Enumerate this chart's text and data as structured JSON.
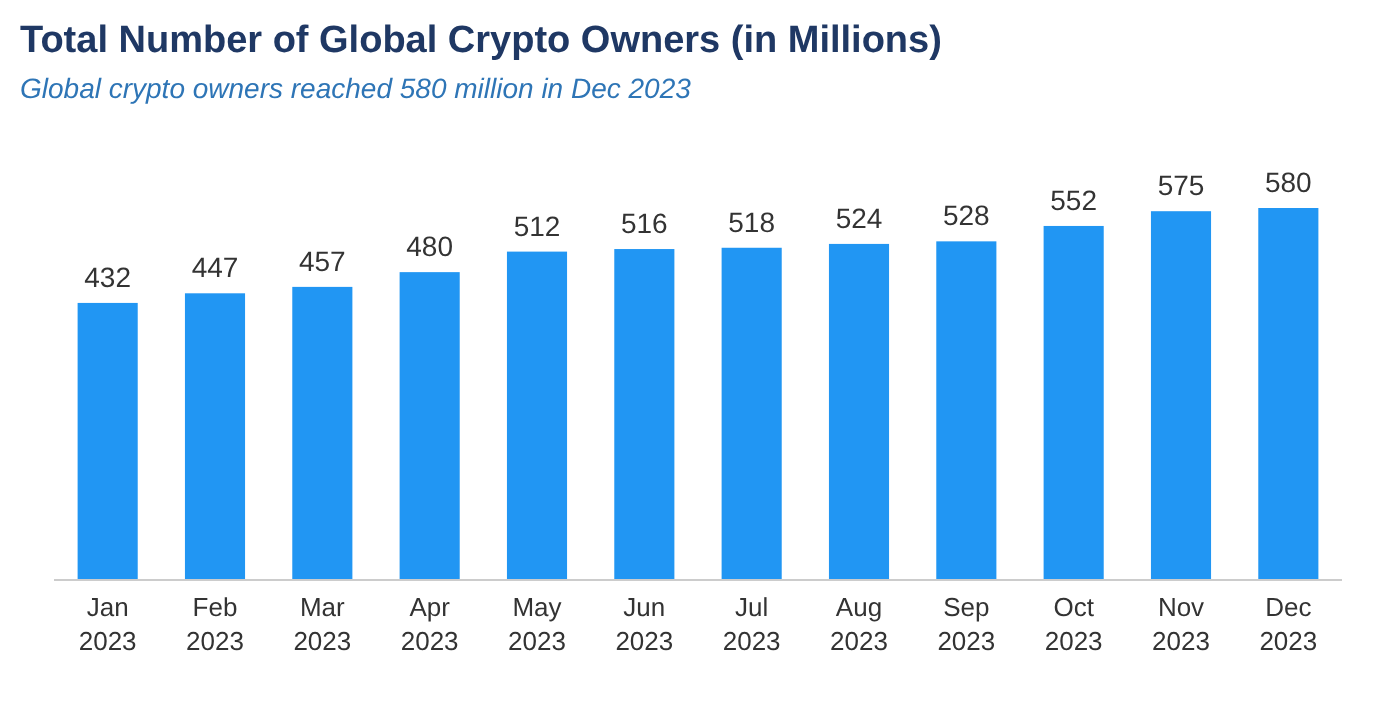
{
  "chart_data": {
    "type": "bar",
    "title": "Total Number of Global Crypto Owners (in Millions)",
    "subtitle": "Global crypto owners reached 580 million in Dec 2023",
    "categories": [
      "Jan 2023",
      "Feb 2023",
      "Mar 2023",
      "Apr 2023",
      "May 2023",
      "Jun 2023",
      "Jul 2023",
      "Aug 2023",
      "Sep 2023",
      "Oct 2023",
      "Nov 2023",
      "Dec 2023"
    ],
    "values": [
      432,
      447,
      457,
      480,
      512,
      516,
      518,
      524,
      528,
      552,
      575,
      580
    ],
    "color": "#2196f3",
    "data_labels": true
  }
}
